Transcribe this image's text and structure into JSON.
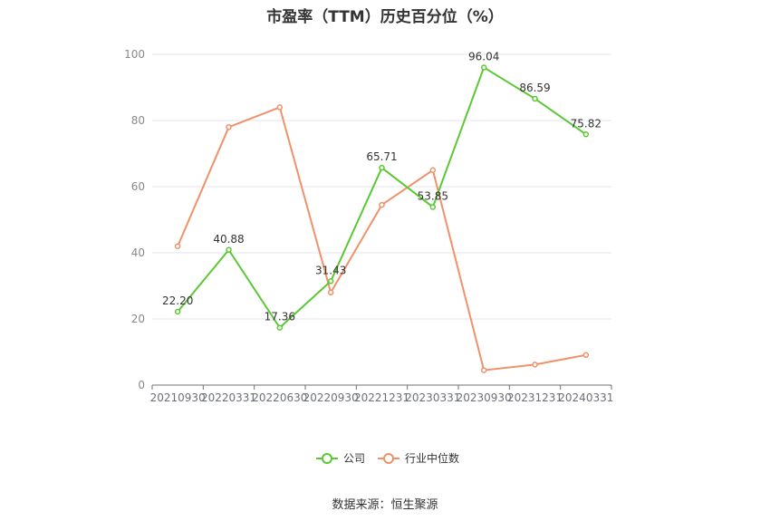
{
  "chart_data": {
    "type": "line",
    "title": "市盈率（TTM）历史百分位（%）",
    "categories": [
      "20210930",
      "20220331",
      "20220630",
      "20220930",
      "20221231",
      "20230331",
      "20230930",
      "20231231",
      "20240331"
    ],
    "series": [
      {
        "name": "公司",
        "color": "#5ac832",
        "values": [
          22.2,
          40.88,
          17.36,
          31.43,
          65.71,
          53.85,
          96.04,
          86.59,
          75.82
        ],
        "labels": [
          "22.20",
          "40.88",
          "17.36",
          "31.43",
          "65.71",
          "53.85",
          "96.04",
          "86.59",
          "75.82"
        ]
      },
      {
        "name": "行业中位数",
        "color": "#f0916a",
        "values": [
          42,
          78,
          84,
          28,
          54.5,
          65,
          4.5,
          6.2,
          9.1
        ]
      }
    ],
    "yticks": [
      0,
      20,
      40,
      60,
      80,
      100
    ],
    "ylim": [
      0,
      100
    ],
    "grid": true,
    "legend_position": "bottom"
  },
  "source": "数据来源：恒生聚源"
}
